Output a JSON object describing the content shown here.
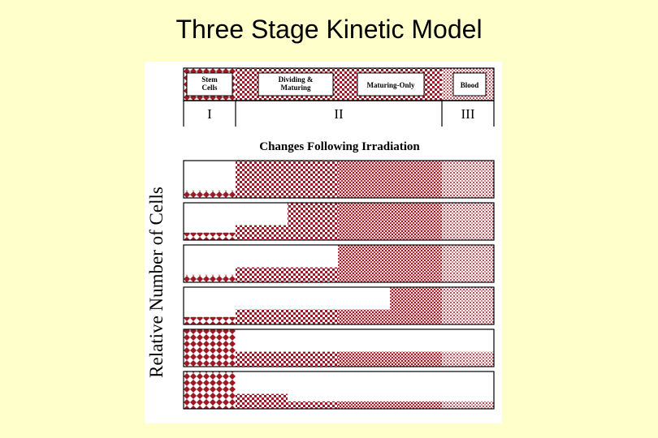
{
  "title": "Three Stage Kinetic Model",
  "figure": {
    "compartments": [
      {
        "label": "Stem\nCells",
        "stage": "I"
      },
      {
        "label": "Dividing &\nMaturing",
        "stage": "II"
      },
      {
        "label": "Maturing-Only",
        "stage": "II"
      },
      {
        "label": "Blood",
        "stage": "III"
      }
    ],
    "stages": [
      "I",
      "II",
      "III"
    ],
    "subtitle": "Changes Following Irradiation",
    "y_axis_label": "Relative Number of Cells",
    "rows": [
      {
        "stem": 0.2,
        "dividing_a": 1.0,
        "dividing_b": 1.0,
        "maturing": 1.0,
        "blood": 1.0
      },
      {
        "stem": 0.2,
        "dividing_a": 0.4,
        "dividing_b": 1.0,
        "maturing": 1.0,
        "blood": 1.0
      },
      {
        "stem": 0.2,
        "dividing_a": 0.4,
        "dividing_b": 0.4,
        "maturing": 1.0,
        "blood": 1.0
      },
      {
        "stem": 0.2,
        "dividing_a": 0.4,
        "dividing_b": 0.4,
        "maturing": 0.4,
        "maturing2": 1.0,
        "blood": 1.0
      },
      {
        "stem": 1.0,
        "dividing_a": 0.4,
        "dividing_b": 0.4,
        "maturing": 0.4,
        "blood": 0.4
      },
      {
        "stem": 1.0,
        "dividing_a": 0.4,
        "dividing_b": 0.2,
        "maturing": 0.2,
        "blood": 0.2
      }
    ],
    "colors": {
      "accent": "#9b1a24",
      "background": "#ffffcc",
      "panel": "#ffffff"
    }
  }
}
